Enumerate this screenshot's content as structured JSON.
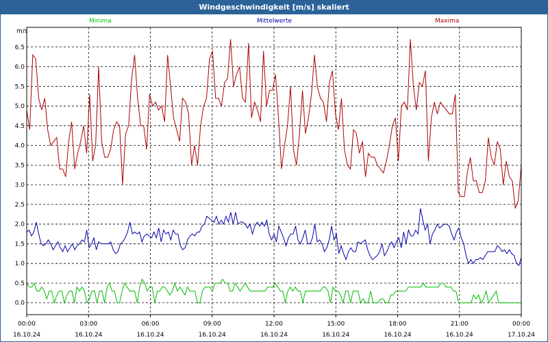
{
  "window": {
    "title": "Windgeschwindigkeit [m/s] skaliert"
  },
  "chart_data": {
    "type": "line",
    "title": "Windgeschwindigkeit [m/s] skaliert",
    "ylabel": "m/s",
    "xlabel": "",
    "ylim": [
      -0.3,
      7.0
    ],
    "xlim": [
      0,
      24
    ],
    "grid": true,
    "yticks": [
      "0.0",
      "0.5",
      "1.0",
      "1.5",
      "2.0",
      "2.5",
      "3.0",
      "3.5",
      "4.0",
      "4.5",
      "5.0",
      "5.5",
      "6.0",
      "6.5"
    ],
    "xticks": [
      {
        "time": "00:00",
        "date": "16.10.24"
      },
      {
        "time": "03:00",
        "date": "16.10.24"
      },
      {
        "time": "06:00",
        "date": "16.10.24"
      },
      {
        "time": "09:00",
        "date": "16.10.24"
      },
      {
        "time": "12:00",
        "date": "16.10.24"
      },
      {
        "time": "15:00",
        "date": "16.10.24"
      },
      {
        "time": "18:00",
        "date": "16.10.24"
      },
      {
        "time": "21:00",
        "date": "16.10.24"
      },
      {
        "time": "00:00",
        "date": "17.10.24"
      }
    ],
    "legend_placement": "top",
    "series": [
      {
        "name": "Minima",
        "color": "#00bb00",
        "values": [
          0.5,
          0.4,
          0.4,
          0.5,
          0.3,
          0.3,
          0.4,
          0.3,
          0.1,
          0.3,
          0.3,
          0.0,
          0.2,
          0.3,
          0.3,
          0.0,
          0.2,
          0.3,
          0.3,
          0.0,
          0.4,
          0.3,
          0.4,
          0.3,
          0.0,
          0.1,
          0.3,
          0.3,
          0.0,
          0.3,
          0.3,
          0.0,
          0.4,
          0.5,
          0.3,
          0.3,
          0.0,
          0.0,
          0.3,
          0.5,
          0.4,
          0.3,
          0.3,
          0.3,
          0.0,
          0.4,
          0.6,
          0.5,
          0.3,
          0.4,
          0.4,
          0.0,
          0.3,
          0.3,
          0.4,
          0.4,
          0.3,
          0.2,
          0.3,
          0.5,
          0.3,
          0.4,
          0.3,
          0.2,
          0.4,
          0.3,
          0.3,
          0.3,
          0.0,
          0.0,
          0.3,
          0.4,
          0.4,
          0.4,
          0.3,
          0.5,
          0.5,
          0.5,
          0.6,
          0.5,
          0.5,
          0.3,
          0.3,
          0.5,
          0.4,
          0.3,
          0.4,
          0.5,
          0.4,
          0.3,
          0.3,
          0.3,
          0.3,
          0.3,
          0.3,
          0.3,
          0.4,
          0.4,
          0.4,
          0.5,
          0.4,
          0.3,
          0.3,
          0.0,
          0.3,
          0.4,
          0.3,
          0.4,
          0.3,
          0.3,
          0.0,
          0.3,
          0.3,
          0.3,
          0.3,
          0.3,
          0.3,
          0.3,
          0.4,
          0.4,
          0.3,
          0.0,
          0.4,
          0.3,
          0.3,
          0.2,
          0.0,
          0.3,
          0.3,
          0.0,
          0.3,
          0.3,
          0.3,
          0.0,
          0.1,
          0.0,
          0.0,
          0.3,
          0.0,
          0.0,
          0.0,
          0.1,
          0.1,
          0.0,
          0.0,
          0.2,
          0.2,
          0.3,
          0.3,
          0.3,
          0.3,
          0.3,
          0.4,
          0.4,
          0.4,
          0.4,
          0.4,
          0.4,
          0.5,
          0.4,
          0.4,
          0.4,
          0.4,
          0.4,
          0.4,
          0.5,
          0.5,
          0.4,
          0.4,
          0.4,
          0.3,
          0.3,
          0.0,
          0.0,
          0.0,
          0.0,
          0.0,
          0.0,
          0.2,
          0.1,
          0.2,
          0.0,
          0.1,
          0.3,
          0.0,
          0.1,
          0.2,
          0.3,
          0.0,
          0.0,
          0.0,
          0.0,
          0.0,
          0.0,
          0.0,
          0.0,
          0.0,
          0.0
        ]
      },
      {
        "name": "Mittelwerte",
        "color": "#0000aa",
        "values": [
          1.8,
          1.85,
          1.7,
          1.8,
          2.05,
          1.75,
          1.5,
          1.45,
          1.5,
          1.6,
          1.5,
          1.35,
          1.45,
          1.55,
          1.4,
          1.3,
          1.45,
          1.3,
          1.4,
          1.5,
          1.35,
          1.45,
          1.5,
          1.6,
          1.55,
          1.85,
          1.4,
          1.5,
          1.65,
          1.35,
          1.55,
          1.5,
          1.5,
          1.5,
          1.5,
          1.55,
          1.35,
          1.25,
          1.3,
          1.5,
          1.55,
          1.65,
          1.8,
          2.05,
          1.75,
          1.8,
          1.75,
          1.8,
          1.55,
          1.7,
          1.75,
          1.7,
          1.65,
          1.8,
          1.65,
          1.9,
          1.55,
          1.85,
          1.75,
          1.8,
          1.6,
          1.85,
          1.75,
          1.75,
          1.45,
          1.35,
          1.4,
          1.6,
          1.7,
          1.75,
          1.7,
          1.8,
          1.8,
          1.95,
          2.0,
          2.2,
          2.15,
          2.1,
          2.05,
          2.2,
          2.0,
          2.1,
          2.0,
          2.2,
          2.05,
          2.3,
          2.0,
          2.3,
          2.0,
          2.05,
          2.05,
          2.0,
          1.9,
          2.0,
          1.75,
          1.95,
          2.05,
          1.95,
          2.05,
          1.95,
          2.1,
          1.75,
          1.6,
          1.75,
          1.55,
          1.95,
          1.8,
          1.65,
          1.45,
          1.65,
          1.75,
          1.75,
          1.95,
          1.6,
          1.5,
          1.65,
          1.85,
          1.5,
          1.5,
          1.65,
          2.0,
          1.55,
          1.6,
          1.5,
          1.3,
          1.4,
          1.6,
          1.95,
          1.6,
          1.75,
          1.25,
          1.45,
          1.25,
          1.1,
          1.3,
          1.4,
          1.3,
          1.3,
          1.55,
          1.5,
          1.55,
          1.6,
          1.35,
          1.2,
          1.1,
          1.15,
          1.2,
          1.3,
          1.5,
          1.2,
          1.3,
          1.45,
          1.55,
          1.4,
          1.55,
          1.65,
          1.4,
          1.8,
          1.5,
          1.85,
          1.7,
          1.7,
          1.85,
          1.75,
          2.4,
          2.1,
          1.85,
          2.0,
          1.5,
          1.75,
          1.85,
          2.0,
          1.9,
          1.95,
          2.0,
          2.0,
          1.95,
          1.75,
          1.6,
          1.8,
          1.9,
          1.65,
          1.5,
          1.2,
          1.0,
          1.1,
          1.0,
          1.1,
          1.1,
          1.15,
          1.1,
          1.2,
          1.3,
          1.3,
          1.3,
          1.3,
          1.45,
          1.4,
          1.3,
          1.35,
          1.25,
          1.35,
          1.25,
          1.2,
          1.0,
          0.95,
          1.15
        ]
      },
      {
        "name": "Maxima",
        "color": "#aa0000",
        "values": [
          4.9,
          4.4,
          6.3,
          6.2,
          5.2,
          4.9,
          5.2,
          4.4,
          4.0,
          4.1,
          4.2,
          3.4,
          3.4,
          3.2,
          4.1,
          4.6,
          3.4,
          3.8,
          4.1,
          4.5,
          3.8,
          5.3,
          3.6,
          4.0,
          6.0,
          4.1,
          3.7,
          3.7,
          3.9,
          4.4,
          4.6,
          4.5,
          3.0,
          4.3,
          4.5,
          5.7,
          6.3,
          5.2,
          4.5,
          4.5,
          3.9,
          5.3,
          5.0,
          5.1,
          4.9,
          5.0,
          4.6,
          6.3,
          5.5,
          4.7,
          4.4,
          4.1,
          5.2,
          5.1,
          4.8,
          3.5,
          4.0,
          3.5,
          4.5,
          5.0,
          5.2,
          6.2,
          6.4,
          5.2,
          5.2,
          5.0,
          5.6,
          5.7,
          6.7,
          5.5,
          5.8,
          6.0,
          5.2,
          5.1,
          6.6,
          4.7,
          5.1,
          4.9,
          4.6,
          6.4,
          5.0,
          5.4,
          5.4,
          5.8,
          4.7,
          3.4,
          4.0,
          4.5,
          5.5,
          3.9,
          3.5,
          4.3,
          5.4,
          4.3,
          4.7,
          5.3,
          6.3,
          5.5,
          5.2,
          5.1,
          4.6,
          5.6,
          5.9,
          4.8,
          4.4,
          5.2,
          3.9,
          3.5,
          3.4,
          4.4,
          4.3,
          3.8,
          4.1,
          3.2,
          3.8,
          3.7,
          3.7,
          3.5,
          3.4,
          3.3,
          3.6,
          4.0,
          4.5,
          4.7,
          3.6,
          5.0,
          5.1,
          4.9,
          6.7,
          5.5,
          4.9,
          5.6,
          5.5,
          5.9,
          3.6,
          4.7,
          5.1,
          4.8,
          5.1,
          5.0,
          4.9,
          4.8,
          4.8,
          5.3,
          2.8,
          2.7,
          2.7,
          3.3,
          3.7,
          3.1,
          3.1,
          2.8,
          2.8,
          3.1,
          4.2,
          3.7,
          3.5,
          4.1,
          3.9,
          3.0,
          3.6,
          3.2,
          3.1,
          2.4,
          2.6,
          3.5
        ]
      }
    ]
  }
}
